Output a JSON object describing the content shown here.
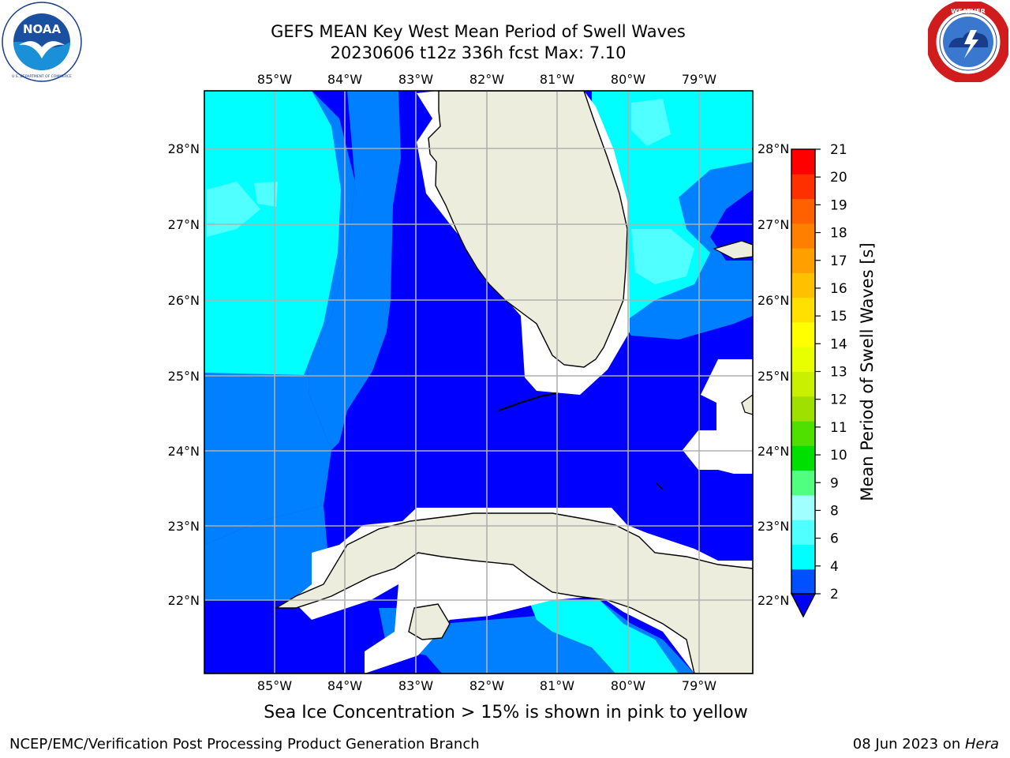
{
  "header": {
    "title_line1": "GEFS MEAN Key West Mean Period of Swell Waves",
    "title_line2": "20230606 t12z 336h fcst   Max: 7.10"
  },
  "logos": {
    "left": {
      "name": "noaa-logo",
      "text": "NOAA",
      "ring_text": "NATIONAL OCEANIC AND ATMOSPHERIC ADMINISTRATION · U.S. DEPARTMENT OF COMMERCE"
    },
    "right": {
      "name": "nws-logo",
      "ring_text": "NATIONAL WEATHER SERVICE"
    }
  },
  "map": {
    "lon_labels": [
      "85°W",
      "84°W",
      "83°W",
      "82°W",
      "81°W",
      "80°W",
      "79°W"
    ],
    "lat_labels": [
      "28°N",
      "27°N",
      "26°N",
      "25°N",
      "24°N",
      "23°N",
      "22°N"
    ],
    "extent": {
      "lon_min": -86.0,
      "lon_max": -78.25,
      "lat_min": 21.05,
      "lat_max": 28.75
    },
    "colors": {
      "land": "#ededdd",
      "ocean_2_4": "#0000ff",
      "ocean_4_6": "#0080ff",
      "ocean_6_7": "#00ffff",
      "ocean_7_8": "#50ffff",
      "grid": "#b0b0b0"
    }
  },
  "colorbar": {
    "label": "Mean Period of Swell Waves [s]",
    "ticks": [
      "21",
      "20",
      "19",
      "18",
      "17",
      "16",
      "15",
      "14",
      "13",
      "12",
      "11",
      "10",
      "9",
      "8",
      "6",
      "4",
      "2"
    ],
    "colors": [
      "#0050ff",
      "#00ffff",
      "#50ffff",
      "#a0ffff",
      "#50ff80",
      "#00e000",
      "#50e000",
      "#a0e000",
      "#c8f000",
      "#e8ff00",
      "#ffff00",
      "#ffe000",
      "#ffc000",
      "#ffa000",
      "#ff8000",
      "#ff6000",
      "#ff3000",
      "#ff0000"
    ]
  },
  "note": "Sea Ice Concentration > 15% is shown in pink to yellow",
  "footer": {
    "left": "NCEP/EMC/Verification Post Processing Product Generation Branch",
    "right_date": "08 Jun 2023 on ",
    "right_host": "Hera"
  }
}
